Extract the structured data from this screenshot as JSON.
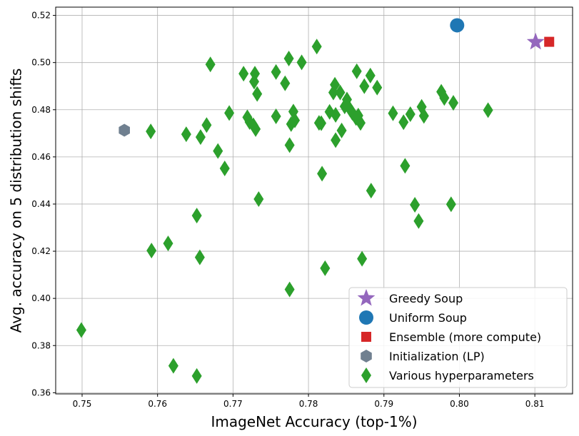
{
  "chart_data": {
    "type": "scatter",
    "xlabel": "ImageNet Accuracy (top-1%)",
    "ylabel": "Avg. accuracy on 5 distribution shifts",
    "xlim": [
      0.7465,
      0.815
    ],
    "ylim": [
      0.3595,
      0.5235
    ],
    "xticks": [
      0.75,
      0.76,
      0.77,
      0.78,
      0.79,
      0.8,
      0.81
    ],
    "xtick_labels": [
      "0.75",
      "0.76",
      "0.77",
      "0.78",
      "0.79",
      "0.80",
      "0.81"
    ],
    "yticks": [
      0.36,
      0.38,
      0.4,
      0.42,
      0.44,
      0.46,
      0.48,
      0.5,
      0.52
    ],
    "ytick_labels": [
      "0.36",
      "0.38",
      "0.40",
      "0.42",
      "0.44",
      "0.46",
      "0.48",
      "0.50",
      "0.52"
    ],
    "grid": true,
    "legend_position": "lower-right",
    "series": [
      {
        "name": "Greedy Soup",
        "marker": "star",
        "color": "#9467bd",
        "points": [
          [
            0.8101,
            0.5087
          ]
        ]
      },
      {
        "name": "Uniform Soup",
        "marker": "circle",
        "color": "#1f77b4",
        "points": [
          [
            0.7997,
            0.5158
          ]
        ]
      },
      {
        "name": "Ensemble (more compute)",
        "marker": "square",
        "color": "#d62728",
        "points": [
          [
            0.8119,
            0.5088
          ]
        ]
      },
      {
        "name": "Initialization (LP)",
        "marker": "hexagon",
        "color": "#708090",
        "points": [
          [
            0.7556,
            0.4713
          ]
        ]
      },
      {
        "name": "Various hyperparameters",
        "marker": "diamond",
        "color": "#2ca02c",
        "points": [
          [
            0.7499,
            0.3866
          ],
          [
            0.7591,
            0.4708
          ],
          [
            0.7592,
            0.4203
          ],
          [
            0.7614,
            0.4233
          ],
          [
            0.7621,
            0.3714
          ],
          [
            0.7638,
            0.4696
          ],
          [
            0.7652,
            0.4351
          ],
          [
            0.7652,
            0.3671
          ],
          [
            0.7656,
            0.4174
          ],
          [
            0.7657,
            0.4684
          ],
          [
            0.7665,
            0.4735
          ],
          [
            0.767,
            0.4992
          ],
          [
            0.768,
            0.4625
          ],
          [
            0.7689,
            0.4551
          ],
          [
            0.7695,
            0.4786
          ],
          [
            0.7714,
            0.4953
          ],
          [
            0.7719,
            0.4768
          ],
          [
            0.7722,
            0.4748
          ],
          [
            0.7727,
            0.4734
          ],
          [
            0.7728,
            0.4919
          ],
          [
            0.7729,
            0.4953
          ],
          [
            0.773,
            0.4718
          ],
          [
            0.7732,
            0.4867
          ],
          [
            0.7734,
            0.4421
          ],
          [
            0.7757,
            0.496
          ],
          [
            0.7757,
            0.4772
          ],
          [
            0.7769,
            0.4912
          ],
          [
            0.7774,
            0.5017
          ],
          [
            0.7775,
            0.465
          ],
          [
            0.7775,
            0.4038
          ],
          [
            0.7777,
            0.4739
          ],
          [
            0.778,
            0.4792
          ],
          [
            0.7782,
            0.4755
          ],
          [
            0.7791,
            0.5001
          ],
          [
            0.7811,
            0.5068
          ],
          [
            0.7814,
            0.4744
          ],
          [
            0.7817,
            0.4743
          ],
          [
            0.7818,
            0.4529
          ],
          [
            0.7822,
            0.4128
          ],
          [
            0.7828,
            0.4791
          ],
          [
            0.7833,
            0.4873
          ],
          [
            0.7835,
            0.4906
          ],
          [
            0.7836,
            0.4778
          ],
          [
            0.7836,
            0.4671
          ],
          [
            0.7842,
            0.4873
          ],
          [
            0.7844,
            0.4712
          ],
          [
            0.7848,
            0.4814
          ],
          [
            0.7851,
            0.4843
          ],
          [
            0.7855,
            0.4802
          ],
          [
            0.7858,
            0.4787
          ],
          [
            0.7863,
            0.4765
          ],
          [
            0.7864,
            0.4963
          ],
          [
            0.7866,
            0.4775
          ],
          [
            0.7869,
            0.4744
          ],
          [
            0.7871,
            0.4168
          ],
          [
            0.7874,
            0.49
          ],
          [
            0.7882,
            0.4945
          ],
          [
            0.7883,
            0.4457
          ],
          [
            0.7891,
            0.4894
          ],
          [
            0.7912,
            0.4785
          ],
          [
            0.7926,
            0.4747
          ],
          [
            0.7928,
            0.4562
          ],
          [
            0.7935,
            0.4781
          ],
          [
            0.7941,
            0.4397
          ],
          [
            0.7946,
            0.4328
          ],
          [
            0.795,
            0.4812
          ],
          [
            0.7953,
            0.4774
          ],
          [
            0.7976,
            0.4876
          ],
          [
            0.798,
            0.485
          ],
          [
            0.7989,
            0.4399
          ],
          [
            0.7992,
            0.4829
          ],
          [
            0.8038,
            0.4798
          ]
        ]
      }
    ]
  }
}
